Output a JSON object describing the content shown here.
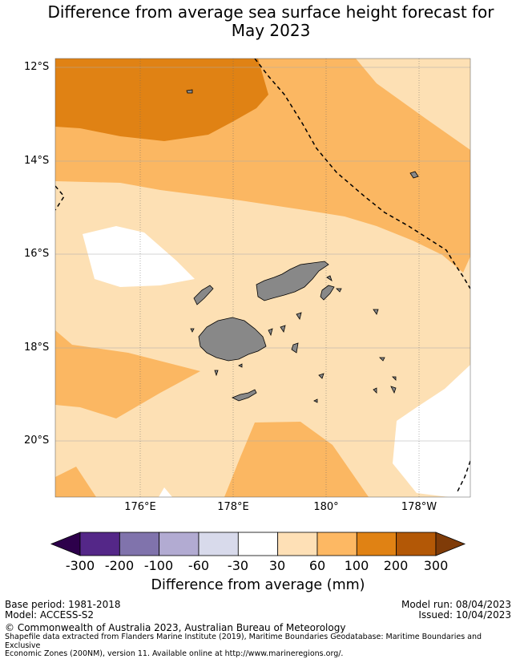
{
  "title": {
    "line1": "Difference from average sea surface height forecast for",
    "line2": "May 2023"
  },
  "map": {
    "lat_labels": [
      "12°S",
      "14°S",
      "16°S",
      "18°S",
      "20°S"
    ],
    "lon_labels": [
      "176°E",
      "178°E",
      "180°",
      "178°W"
    ],
    "colors": {
      "30_60": "#fde0b4",
      "60_100": "#fbb762",
      "100_200": "#e08214",
      "land": "#888888",
      "eez_boundary": "#000000"
    }
  },
  "colorbar": {
    "ticks": [
      "-300",
      "-200",
      "-100",
      "-60",
      "-30",
      "30",
      "60",
      "100",
      "200",
      "300"
    ],
    "colors": [
      "#2d004b",
      "#542788",
      "#8073ac",
      "#b2abd2",
      "#d8daeb",
      "#ffffff",
      "#fee0b6",
      "#fdb863",
      "#e08214",
      "#b35806",
      "#7f3b08"
    ],
    "label": "Difference from average (mm)"
  },
  "footer": {
    "base_period": "Base period: 1981-2018",
    "model": "Model: ACCESS-S2",
    "model_run": "Model run: 08/04/2023",
    "issued": "Issued: 10/04/2023",
    "copyright": "© Commonwealth of Australia 2023, Australian Bureau of Meteorology",
    "shapefile_line1": "Shapefile data extracted from Flanders Marine Institute (2019), Maritime Boundaries Geodatabase: Maritime Boundaries and Exclusive",
    "shapefile_line2": "Economic Zones (200NM), version 11. Available online at http://www.marineregions.org/."
  }
}
